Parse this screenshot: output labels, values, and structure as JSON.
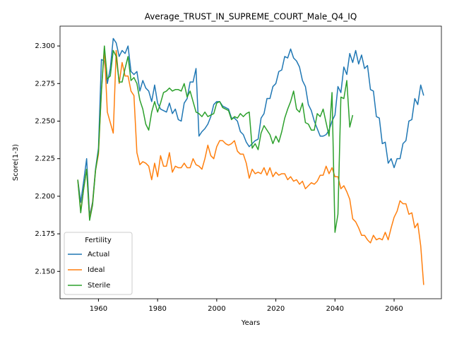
{
  "chart_data": {
    "type": "line",
    "title": "Average_TRUST_IN_SUPREME_COURT_Male_Q4_IQ",
    "x_label": "Years",
    "y_label": "Score(1-3)",
    "legend_title": "Fertility",
    "legend": "lower left",
    "x": [
      1953,
      1954,
      1955,
      1956,
      1957,
      1958,
      1959,
      1960,
      1961,
      1962,
      1963,
      1964,
      1965,
      1966,
      1967,
      1968,
      1969,
      1970,
      1971,
      1972,
      1973,
      1974,
      1975,
      1976,
      1977,
      1978,
      1979,
      1980,
      1981,
      1982,
      1983,
      1984,
      1985,
      1986,
      1987,
      1988,
      1989,
      1990,
      1991,
      1992,
      1993,
      1994,
      1995,
      1996,
      1997,
      1998,
      1999,
      2000,
      2001,
      2002,
      2003,
      2004,
      2005,
      2006,
      2007,
      2008,
      2009,
      2010,
      2011,
      2012,
      2013,
      2014,
      2015,
      2016,
      2017,
      2018,
      2019,
      2020,
      2021,
      2022,
      2023,
      2024,
      2025,
      2026,
      2027,
      2028,
      2029,
      2030,
      2031,
      2032,
      2033,
      2034,
      2035,
      2036,
      2037,
      2038,
      2039,
      2040,
      2041,
      2042,
      2043,
      2044,
      2045,
      2046,
      2047,
      2048,
      2049,
      2050,
      2051,
      2052,
      2053,
      2054,
      2055,
      2056,
      2057,
      2058,
      2059,
      2060,
      2061,
      2062,
      2063,
      2064,
      2065,
      2066,
      2067,
      2068,
      2069,
      2070
    ],
    "series": [
      {
        "name": "Actual",
        "color": "#1f77b4",
        "values": [
          2.211,
          2.196,
          2.21,
          2.225,
          2.187,
          2.196,
          2.218,
          2.232,
          2.291,
          2.29,
          2.275,
          2.285,
          2.305,
          2.302,
          2.293,
          2.297,
          2.295,
          2.3,
          2.283,
          2.281,
          2.283,
          2.27,
          2.277,
          2.272,
          2.27,
          2.263,
          2.274,
          2.262,
          2.258,
          2.257,
          2.256,
          2.262,
          2.255,
          2.258,
          2.251,
          2.25,
          2.262,
          2.265,
          2.276,
          2.276,
          2.285,
          2.24,
          2.243,
          2.245,
          2.248,
          2.253,
          2.261,
          2.263,
          2.263,
          2.26,
          2.259,
          2.258,
          2.252,
          2.252,
          2.25,
          2.243,
          2.241,
          2.236,
          2.233,
          2.235,
          2.237,
          2.238,
          2.252,
          2.255,
          2.265,
          2.265,
          2.273,
          2.275,
          2.283,
          2.284,
          2.293,
          2.292,
          2.298,
          2.292,
          2.29,
          2.286,
          2.277,
          2.273,
          2.261,
          2.257,
          2.25,
          2.245,
          2.24,
          2.24,
          2.241,
          2.244,
          2.25,
          2.254,
          2.273,
          2.269,
          2.286,
          2.281,
          2.295,
          2.289,
          2.297,
          2.288,
          2.294,
          2.285,
          2.287,
          2.271,
          2.27,
          2.253,
          2.252,
          2.235,
          2.236,
          2.222,
          2.225,
          2.219,
          2.225,
          2.225,
          2.235,
          2.237,
          2.25,
          2.251,
          2.265,
          2.261,
          2.274,
          2.267
        ]
      },
      {
        "name": "Ideal",
        "color": "#ff7f0e",
        "values": [
          2.211,
          2.19,
          2.205,
          2.218,
          2.185,
          2.195,
          2.217,
          2.228,
          2.27,
          2.298,
          2.256,
          2.249,
          2.242,
          2.297,
          2.275,
          2.289,
          2.28,
          2.28,
          2.27,
          2.267,
          2.229,
          2.221,
          2.223,
          2.222,
          2.22,
          2.211,
          2.222,
          2.213,
          2.227,
          2.22,
          2.22,
          2.229,
          2.216,
          2.22,
          2.219,
          2.219,
          2.222,
          2.219,
          2.219,
          2.225,
          2.221,
          2.22,
          2.218,
          2.225,
          2.234,
          2.227,
          2.225,
          2.233,
          2.237,
          2.237,
          2.235,
          2.234,
          2.235,
          2.237,
          2.23,
          2.228,
          2.228,
          2.222,
          2.212,
          2.218,
          2.215,
          2.216,
          2.215,
          2.219,
          2.214,
          2.219,
          2.213,
          2.216,
          2.214,
          2.215,
          2.215,
          2.211,
          2.213,
          2.21,
          2.211,
          2.208,
          2.21,
          2.205,
          2.207,
          2.209,
          2.208,
          2.21,
          2.214,
          2.214,
          2.22,
          2.215,
          2.219,
          2.213,
          2.213,
          2.205,
          2.207,
          2.203,
          2.198,
          2.185,
          2.183,
          2.179,
          2.174,
          2.174,
          2.171,
          2.169,
          2.174,
          2.171,
          2.172,
          2.171,
          2.176,
          2.171,
          2.179,
          2.186,
          2.19,
          2.197,
          2.195,
          2.195,
          2.188,
          2.189,
          2.179,
          2.182,
          2.167,
          2.141
        ]
      },
      {
        "name": "Sterile",
        "color": "#2ca02c",
        "values": [
          2.211,
          2.189,
          2.205,
          2.218,
          2.184,
          2.194,
          2.217,
          2.23,
          2.27,
          2.3,
          2.278,
          2.28,
          2.297,
          2.293,
          2.276,
          2.276,
          2.285,
          2.293,
          2.277,
          2.279,
          2.275,
          2.264,
          2.258,
          2.248,
          2.244,
          2.256,
          2.263,
          2.256,
          2.262,
          2.269,
          2.27,
          2.272,
          2.27,
          2.271,
          2.271,
          2.27,
          2.275,
          2.266,
          2.27,
          2.263,
          2.256,
          2.255,
          2.253,
          2.256,
          2.253,
          2.254,
          2.255,
          2.262,
          2.263,
          2.259,
          2.258,
          2.257,
          2.251,
          2.253,
          2.252,
          2.255,
          2.253,
          2.255,
          2.256,
          2.232,
          2.235,
          2.231,
          2.242,
          2.247,
          2.244,
          2.241,
          2.235,
          2.24,
          2.236,
          2.243,
          2.252,
          2.258,
          2.263,
          2.27,
          2.258,
          2.256,
          2.262,
          2.249,
          2.248,
          2.244,
          2.244,
          2.255,
          2.253,
          2.258,
          2.249,
          2.24,
          2.269,
          2.176,
          2.188,
          2.266,
          2.265,
          2.277,
          2.246,
          2.254,
          null,
          null,
          null,
          null,
          null,
          null,
          null,
          null,
          null,
          null,
          null,
          null,
          null,
          null,
          null,
          null,
          null,
          null,
          null,
          null,
          null,
          null,
          null,
          null
        ]
      }
    ],
    "xlim": [
      1947,
      2076
    ],
    "ylim": [
      2.1318,
      2.3132
    ],
    "xticks": [
      1960,
      1980,
      2000,
      2020,
      2040,
      2060
    ],
    "yticks": [
      {
        "value": 2.15,
        "label": "2.150"
      },
      {
        "value": 2.175,
        "label": "2.175"
      },
      {
        "value": 2.2,
        "label": "2.200"
      },
      {
        "value": 2.225,
        "label": "2.225"
      },
      {
        "value": 2.25,
        "label": "2.250"
      },
      {
        "value": 2.275,
        "label": "2.275"
      },
      {
        "value": 2.3,
        "label": "2.300"
      }
    ]
  }
}
